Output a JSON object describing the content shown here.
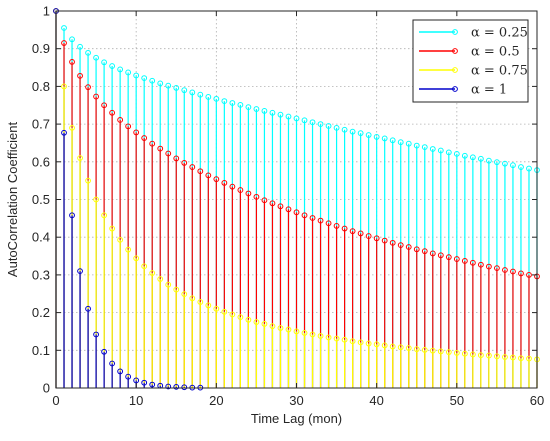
{
  "chart_data": {
    "type": "stem",
    "xlabel": "Time Lag (mon)",
    "ylabel": "AutoCorrelation Coefficient",
    "xlim": [
      0,
      60
    ],
    "ylim": [
      0,
      1
    ],
    "xticks": [
      0,
      10,
      20,
      30,
      40,
      50,
      60
    ],
    "yticks": [
      0,
      0.1,
      0.2,
      0.3,
      0.4,
      0.5,
      0.6,
      0.7,
      0.8,
      0.9,
      1
    ],
    "grid": true,
    "legend_position": "top-right",
    "lags_per_month": 1,
    "series": [
      {
        "name": "α = 0.25",
        "color": "#00ffff",
        "note_x_range": [
          0,
          60
        ],
        "values": [
          1.0,
          0.955,
          0.925,
          0.905,
          0.889,
          0.876,
          0.864,
          0.854,
          0.845,
          0.837,
          0.829,
          0.822,
          0.815,
          0.808,
          0.802,
          0.796,
          0.79,
          0.784,
          0.778,
          0.772,
          0.767,
          0.761,
          0.756,
          0.751,
          0.745,
          0.74,
          0.735,
          0.73,
          0.725,
          0.72,
          0.715,
          0.71,
          0.705,
          0.7,
          0.695,
          0.69,
          0.685,
          0.68,
          0.676,
          0.671,
          0.666,
          0.662,
          0.657,
          0.652,
          0.648,
          0.643,
          0.639,
          0.634,
          0.63,
          0.625,
          0.621,
          0.616,
          0.612,
          0.608,
          0.603,
          0.599,
          0.595,
          0.591,
          0.586,
          0.582,
          0.578
        ]
      },
      {
        "name": "α = 0.5",
        "color": "#ff0000",
        "values": [
          1.0,
          0.915,
          0.865,
          0.828,
          0.798,
          0.773,
          0.75,
          0.73,
          0.711,
          0.694,
          0.678,
          0.663,
          0.648,
          0.635,
          0.622,
          0.609,
          0.597,
          0.586,
          0.575,
          0.564,
          0.554,
          0.544,
          0.534,
          0.525,
          0.516,
          0.507,
          0.498,
          0.49,
          0.482,
          0.474,
          0.466,
          0.458,
          0.451,
          0.444,
          0.437,
          0.43,
          0.423,
          0.416,
          0.41,
          0.403,
          0.397,
          0.391,
          0.385,
          0.379,
          0.374,
          0.368,
          0.363,
          0.357,
          0.352,
          0.347,
          0.342,
          0.337,
          0.332,
          0.327,
          0.322,
          0.318,
          0.313,
          0.309,
          0.304,
          0.3,
          0.296
        ]
      },
      {
        "name": "α = 0.75",
        "color": "#ffff00",
        "values": [
          1.0,
          0.8,
          0.69,
          0.61,
          0.55,
          0.5,
          0.458,
          0.423,
          0.393,
          0.367,
          0.344,
          0.323,
          0.305,
          0.289,
          0.274,
          0.261,
          0.249,
          0.238,
          0.228,
          0.219,
          0.21,
          0.202,
          0.195,
          0.188,
          0.181,
          0.175,
          0.17,
          0.164,
          0.159,
          0.155,
          0.15,
          0.146,
          0.142,
          0.138,
          0.134,
          0.131,
          0.128,
          0.124,
          0.121,
          0.118,
          0.116,
          0.113,
          0.11,
          0.108,
          0.106,
          0.103,
          0.101,
          0.099,
          0.097,
          0.095,
          0.093,
          0.091,
          0.089,
          0.087,
          0.086,
          0.084,
          0.082,
          0.081,
          0.079,
          0.078,
          0.076
        ]
      },
      {
        "name": "α = 1",
        "color": "#0000cc",
        "values": [
          1.0,
          0.677,
          0.458,
          0.31,
          0.21,
          0.142,
          0.096,
          0.065,
          0.044,
          0.03,
          0.02,
          0.014,
          0.009,
          0.006,
          0.004,
          0.003,
          0.002,
          0.001,
          0.001
        ]
      }
    ]
  }
}
